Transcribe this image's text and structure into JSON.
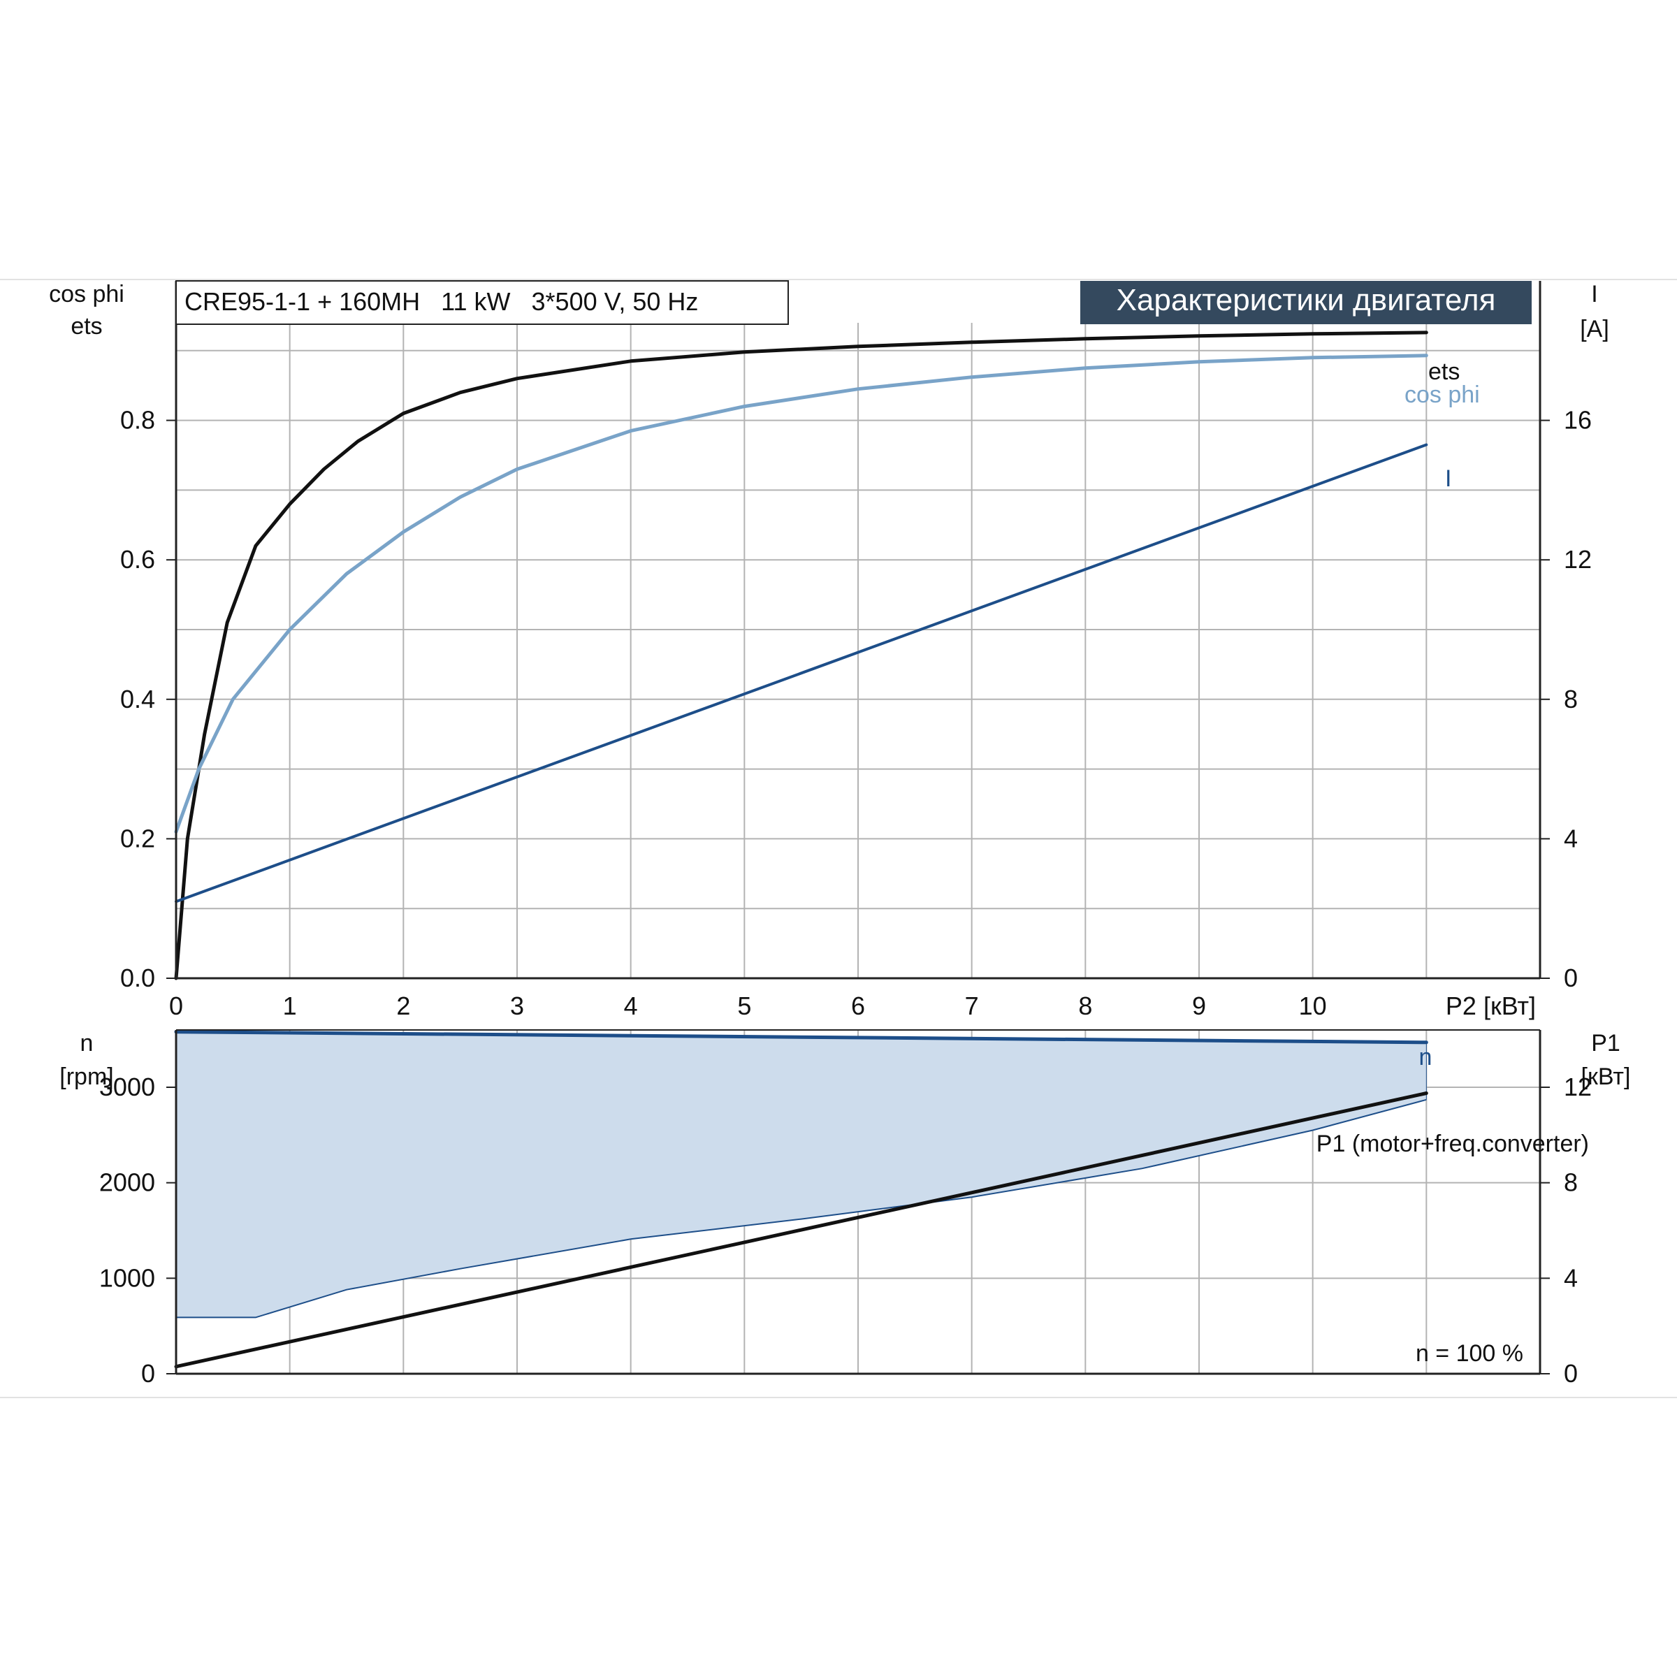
{
  "colors": {
    "ets": "#111111",
    "cos_phi": "#79a3c8",
    "current": "#1d4e89",
    "speed": "#1d4e89",
    "p1": "#111111",
    "envelope_fill": "#cddcec",
    "grid": "#b3b3b3",
    "badge_bg": "#34495e",
    "badge_text": "#ffffff"
  },
  "chart_data": [
    {
      "type": "line",
      "title": "CRE95-1-1 + 160MH   11 kW   3*500 V, 50 Hz",
      "badge": "Характеристики двигателя",
      "xlabel": "P2 [кВт]",
      "x_ticks": [
        "0",
        "1",
        "2",
        "3",
        "4",
        "5",
        "6",
        "7",
        "8",
        "9",
        "10"
      ],
      "xlim": [
        0,
        12
      ],
      "y_left_label": [
        "cos phi",
        "ets"
      ],
      "y_left_ticks": [
        "0.0",
        "0.2",
        "0.4",
        "0.6",
        "0.8"
      ],
      "ylim_left": [
        0,
        1.0
      ],
      "y_right_label": [
        "I",
        "[A]"
      ],
      "y_right_ticks": [
        "0",
        "4",
        "8",
        "12",
        "16"
      ],
      "ylim_right": [
        0,
        20
      ],
      "grid": true,
      "series": [
        {
          "name": "ets",
          "axis": "left",
          "x": [
            0,
            0.1,
            0.25,
            0.45,
            0.7,
            1.0,
            1.3,
            1.6,
            2.0,
            2.5,
            3.0,
            4.0,
            5.0,
            6.0,
            7.0,
            8.0,
            9.0,
            10.0,
            11.0
          ],
          "y": [
            0.0,
            0.2,
            0.35,
            0.51,
            0.62,
            0.68,
            0.73,
            0.77,
            0.81,
            0.84,
            0.86,
            0.885,
            0.898,
            0.906,
            0.912,
            0.917,
            0.921,
            0.924,
            0.926
          ]
        },
        {
          "name": "cos phi",
          "axis": "left",
          "x": [
            0,
            0.2,
            0.5,
            1.0,
            1.5,
            2.0,
            2.5,
            3.0,
            4.0,
            5.0,
            6.0,
            7.0,
            8.0,
            9.0,
            10.0,
            11.0
          ],
          "y": [
            0.21,
            0.3,
            0.4,
            0.5,
            0.58,
            0.64,
            0.69,
            0.73,
            0.785,
            0.82,
            0.845,
            0.862,
            0.875,
            0.884,
            0.89,
            0.893
          ]
        },
        {
          "name": "I",
          "axis": "right",
          "x": [
            0,
            11.0
          ],
          "y": [
            2.2,
            15.3
          ]
        }
      ]
    },
    {
      "type": "area",
      "xlim": [
        0,
        12
      ],
      "y_left_label": [
        "n",
        "[rpm]"
      ],
      "y_left_ticks": [
        "0",
        "1000",
        "2000",
        "3000"
      ],
      "ylim_left": [
        0,
        3600
      ],
      "y_right_label": [
        "P1",
        "[кВт]"
      ],
      "y_right_ticks": [
        "0",
        "4",
        "8",
        "12"
      ],
      "ylim_right": [
        0,
        14.4
      ],
      "annotation": "n = 100 %",
      "grid": true,
      "series": [
        {
          "name": "n",
          "axis": "left",
          "x": [
            0,
            11.0
          ],
          "y": [
            3580,
            3470
          ]
        },
        {
          "name": "n_min",
          "axis": "left",
          "x": [
            0,
            0.7,
            1.5,
            2.5,
            4.0,
            5.5,
            7.0,
            8.5,
            10.0,
            11.0
          ],
          "y": [
            590,
            590,
            880,
            1100,
            1410,
            1620,
            1850,
            2150,
            2550,
            2870
          ]
        },
        {
          "name": "P1 (motor+freq.converter)",
          "axis": "right",
          "x": [
            0,
            11.0
          ],
          "y": [
            0.3,
            11.75
          ]
        }
      ]
    }
  ]
}
